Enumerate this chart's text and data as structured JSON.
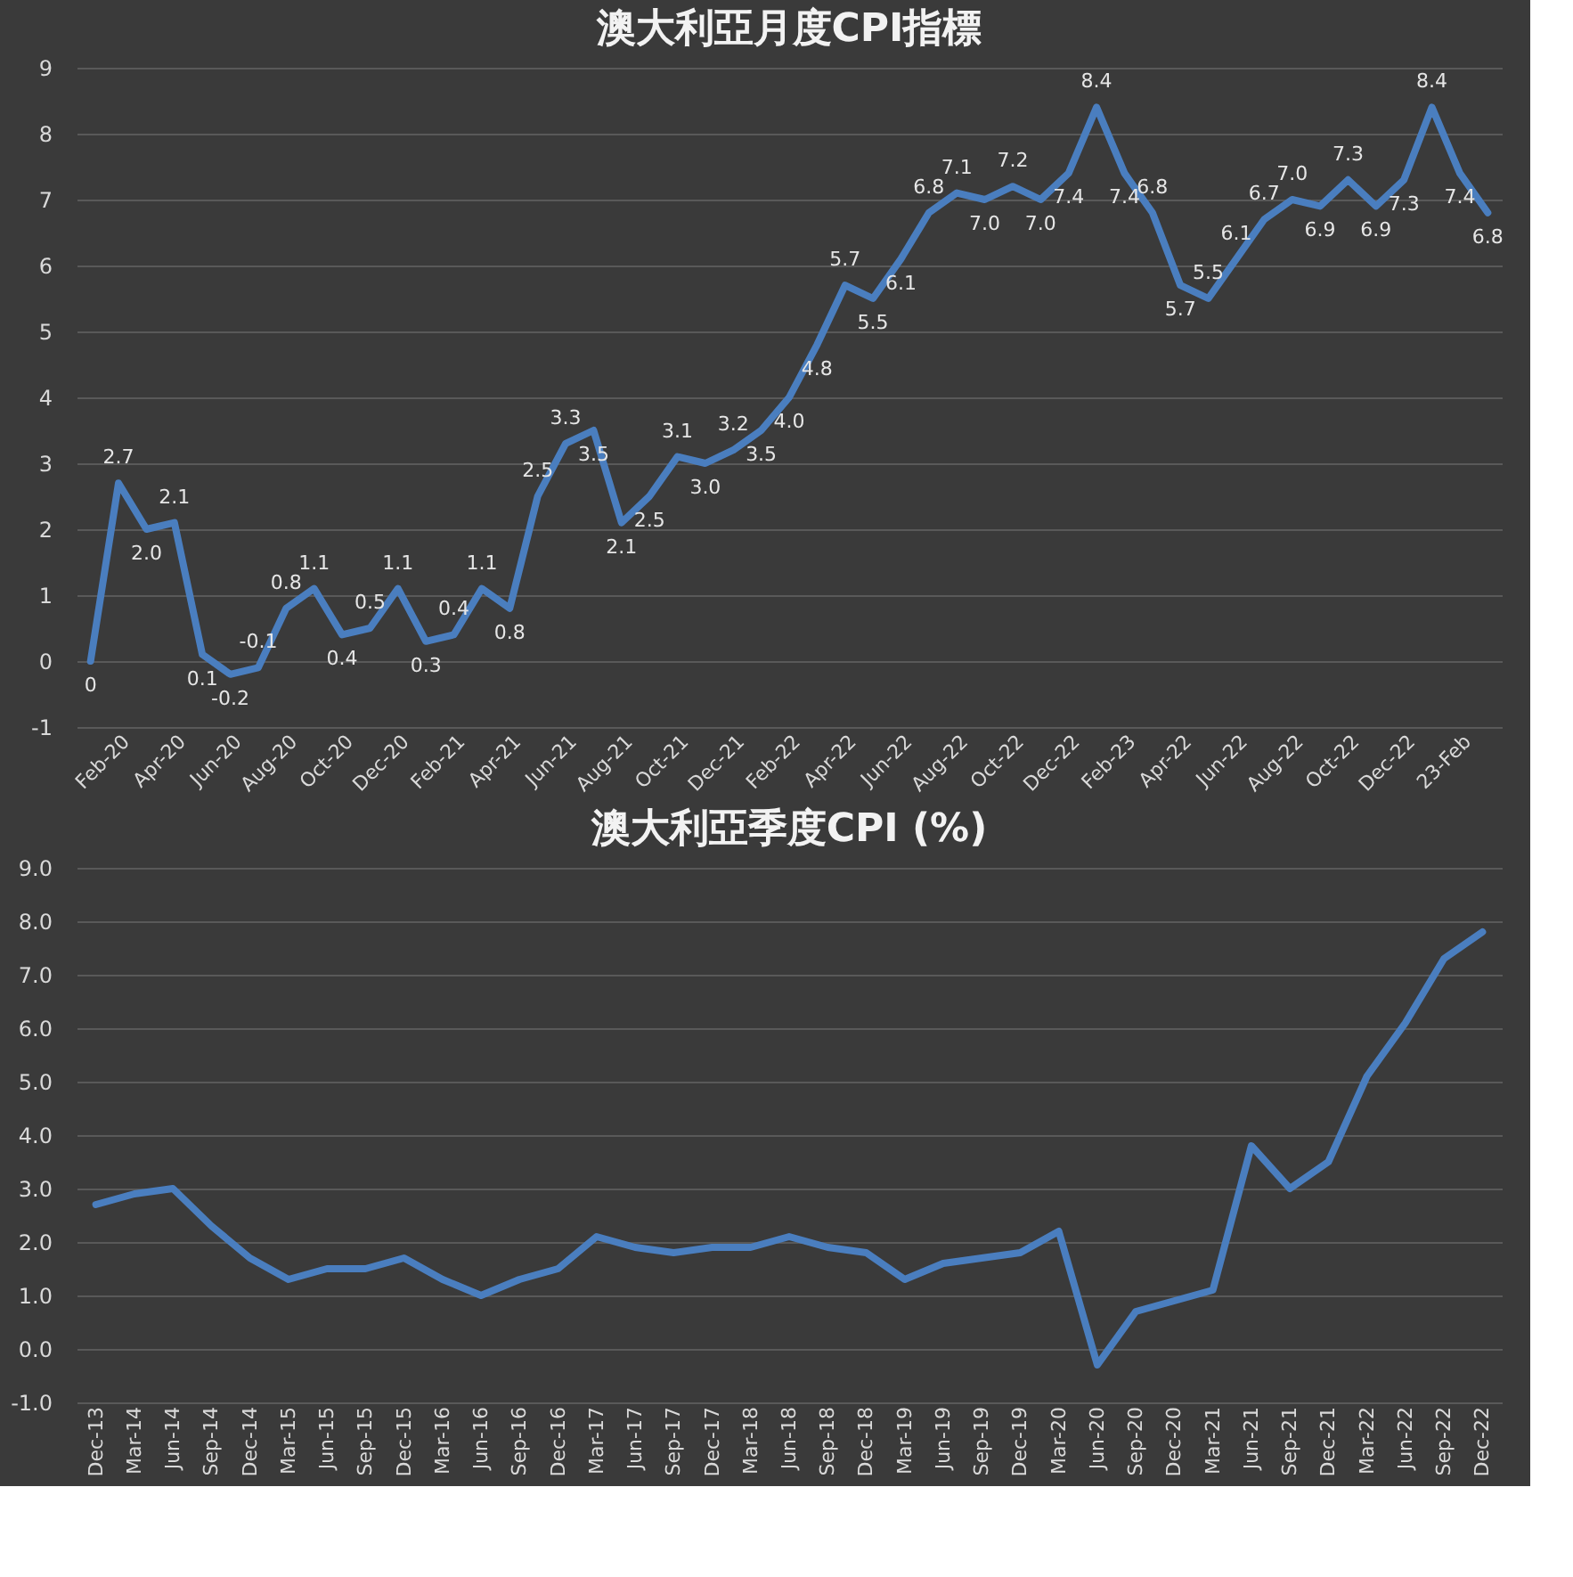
{
  "chart_data": [
    {
      "type": "line",
      "title": "澳大利亞月度CPI指標",
      "categories": [
        null,
        "Feb-20",
        null,
        "Apr-20",
        null,
        "Jun-20",
        null,
        "Aug-20",
        null,
        "Oct-20",
        null,
        "Dec-20",
        null,
        "Feb-21",
        null,
        "Apr-21",
        null,
        "Jun-21",
        null,
        "Aug-21",
        null,
        "Oct-21",
        null,
        "Dec-21",
        null,
        "Feb-22",
        null,
        "Apr-22",
        null,
        "Jun-22",
        null,
        "Aug-22",
        null,
        "Oct-22",
        null,
        "Dec-22",
        null,
        "Feb-23",
        null,
        "Apr-22",
        null,
        "Jun-22",
        null,
        "Aug-22",
        null,
        "Oct-22",
        null,
        "Dec-22",
        null,
        "23-Feb",
        null
      ],
      "series": [
        {
          "color": "#4a7ebf",
          "values": [
            0,
            2.7,
            2.0,
            2.1,
            0.1,
            -0.2,
            -0.1,
            0.8,
            1.1,
            0.4,
            0.5,
            1.1,
            0.3,
            0.4,
            1.1,
            0.8,
            2.5,
            3.3,
            3.5,
            2.1,
            2.5,
            3.1,
            3.0,
            3.2,
            3.5,
            4.0,
            4.8,
            5.7,
            5.5,
            6.1,
            6.8,
            7.1,
            7.0,
            7.2,
            7.0,
            7.4,
            8.4,
            7.4,
            6.8,
            5.7,
            5.5,
            6.1,
            6.7,
            7.0,
            6.9,
            7.3,
            6.9,
            7.3,
            8.4,
            7.4,
            6.8
          ],
          "value_labels": [
            "0",
            "2.7",
            "2.0",
            "2.1",
            "0.1",
            "-0.2",
            "-0.1",
            "0.8",
            "1.1",
            "0.4",
            "0.5",
            "1.1",
            "0.3",
            "0.4",
            "1.1",
            "0.8",
            "2.5",
            "3.3",
            "3.5",
            "2.1",
            "2.5",
            "3.1",
            "3.0",
            "3.2",
            "3.5",
            "4.0",
            "4.8",
            "5.7",
            "5.5",
            "6.1",
            "6.8",
            "7.1",
            "7.0",
            "7.2",
            "7.0",
            "7.4",
            "8.4",
            "7.4",
            "6.8",
            "5.7",
            "5.5",
            "6.1",
            "6.7",
            "7.0",
            "6.9",
            "7.3",
            "6.9",
            "7.3",
            "8.4",
            "7.4",
            "6.8"
          ]
        }
      ],
      "ylim": [
        -1,
        9
      ],
      "yticks": [
        -1,
        0,
        1,
        2,
        3,
        4,
        5,
        6,
        7,
        8,
        9
      ],
      "grid": "y",
      "legend": false,
      "marker": "none",
      "line_style": "solid"
    },
    {
      "type": "line",
      "title": "澳大利亞季度CPI (%)",
      "categories": [
        "Dec-13",
        "Mar-14",
        "Jun-14",
        "Sep-14",
        "Dec-14",
        "Mar-15",
        "Jun-15",
        "Sep-15",
        "Dec-15",
        "Mar-16",
        "Jun-16",
        "Sep-16",
        "Dec-16",
        "Mar-17",
        "Jun-17",
        "Sep-17",
        "Dec-17",
        "Mar-18",
        "Jun-18",
        "Sep-18",
        "Dec-18",
        "Mar-19",
        "Jun-19",
        "Sep-19",
        "Dec-19",
        "Mar-20",
        "Jun-20",
        "Sep-20",
        "Dec-20",
        "Mar-21",
        "Jun-21",
        "Sep-21",
        "Dec-21",
        "Mar-22",
        "Jun-22",
        "Sep-22",
        "Dec-22"
      ],
      "series": [
        {
          "color": "#4a7ebf",
          "values": [
            2.7,
            2.9,
            3.0,
            2.3,
            1.7,
            1.3,
            1.5,
            1.5,
            1.7,
            1.3,
            1.0,
            1.3,
            1.5,
            2.1,
            1.9,
            1.8,
            1.9,
            1.9,
            2.1,
            1.9,
            1.8,
            1.3,
            1.6,
            1.7,
            1.8,
            2.2,
            -0.3,
            0.7,
            0.9,
            1.1,
            3.8,
            3.0,
            3.5,
            5.1,
            6.1,
            7.3,
            7.8
          ]
        }
      ],
      "ylim": [
        -1,
        9
      ],
      "yticks": [
        {
          "value": -1,
          "label": "-1.0"
        },
        {
          "value": 0,
          "label": "0.0"
        },
        {
          "value": 1,
          "label": "1.0"
        },
        {
          "value": 2,
          "label": "2.0"
        },
        {
          "value": 3,
          "label": "3.0"
        },
        {
          "value": 4,
          "label": "4.0"
        },
        {
          "value": 5,
          "label": "5.0"
        },
        {
          "value": 6,
          "label": "6.0"
        },
        {
          "value": 7,
          "label": "7.0"
        },
        {
          "value": 8,
          "label": "8.0"
        },
        {
          "value": 9,
          "label": "9.0"
        }
      ],
      "grid": "y",
      "legend": false,
      "marker": "none",
      "line_style": "solid"
    }
  ]
}
